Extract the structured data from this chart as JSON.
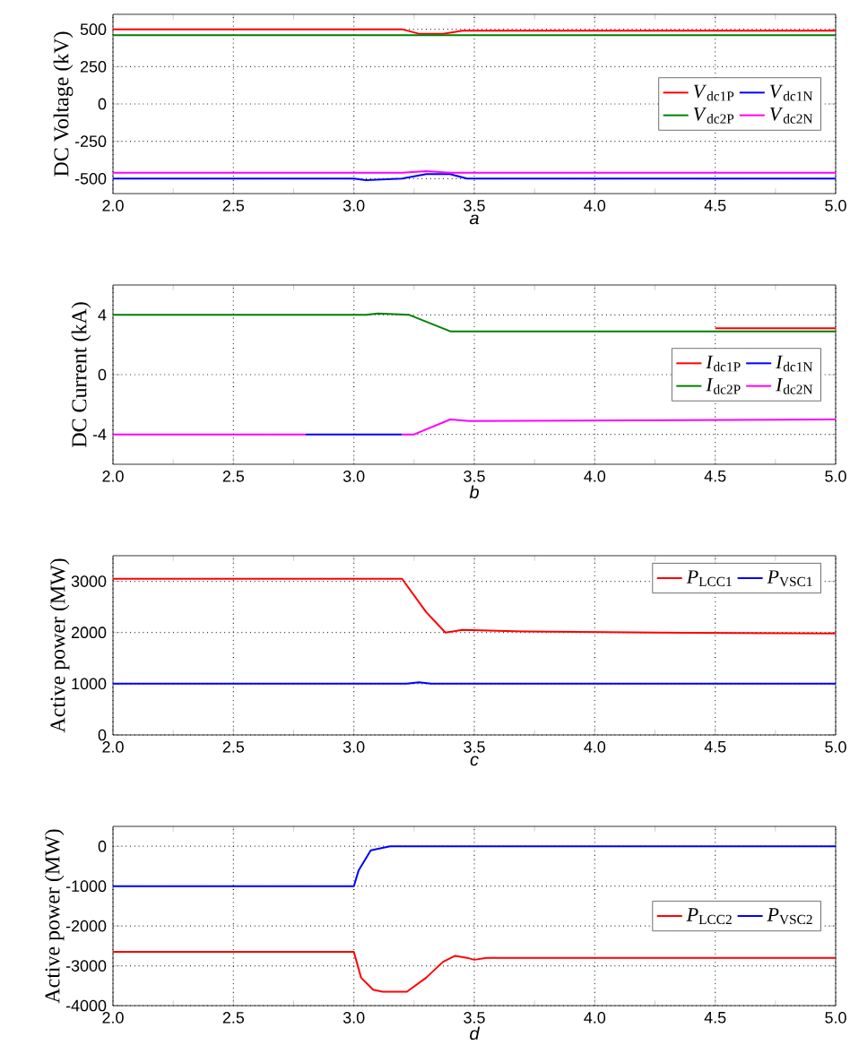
{
  "chart_data": [
    {
      "type": "line",
      "xlabel": "a",
      "ylabel": "DC Voltage (kV)",
      "xlim": [
        2,
        5
      ],
      "ylim": [
        -600,
        600
      ],
      "xticks": [
        {
          "value": 2,
          "label": "2.0"
        },
        {
          "value": 2.5,
          "label": "2.5"
        },
        {
          "value": 3,
          "label": "3.0"
        },
        {
          "value": 3.5,
          "label": "3.5"
        },
        {
          "value": 4,
          "label": "4.0"
        },
        {
          "value": 4.5,
          "label": "4.5"
        },
        {
          "value": 5,
          "label": "5.0"
        }
      ],
      "yticks": [
        -500,
        -250,
        0,
        250,
        500
      ],
      "grid": true,
      "legend": "right",
      "marker": "none",
      "line_style": "solid",
      "series": [
        {
          "name": "*V*$_{dc1P}$",
          "color": "#ff0000",
          "x": [
            2,
            3.2,
            3.27,
            3.37,
            3.45,
            3.6,
            5
          ],
          "values": [
            500,
            500,
            470,
            470,
            490,
            490,
            490
          ]
        },
        {
          "name": "*V*$_{dc1N}$",
          "color": "#0000ff",
          "x": [
            2,
            3.0,
            3.05,
            3.2,
            3.3,
            3.4,
            3.47,
            5
          ],
          "values": [
            -500,
            -500,
            -510,
            -500,
            -470,
            -470,
            -500,
            -500
          ]
        },
        {
          "name": "*V*$_{dc2P}$",
          "color": "#008000",
          "x": [
            2,
            3.2,
            3.45,
            5
          ],
          "values": [
            460,
            460,
            460,
            460
          ]
        },
        {
          "name": "*V*$_{dc2N}$",
          "color": "#ff00ff",
          "x": [
            2,
            3.2,
            3.3,
            3.4,
            5
          ],
          "values": [
            -460,
            -460,
            -450,
            -460,
            -460
          ]
        }
      ]
    },
    {
      "type": "line",
      "xlabel": "b",
      "ylabel": "DC Current (kA)",
      "xlim": [
        2,
        5
      ],
      "ylim": [
        -6,
        6
      ],
      "xticks": [
        {
          "value": 2,
          "label": "2.0"
        },
        {
          "value": 2.5,
          "label": "2.5"
        },
        {
          "value": 3,
          "label": "3.0"
        },
        {
          "value": 3.5,
          "label": "3.5"
        },
        {
          "value": 4,
          "label": "4.0"
        },
        {
          "value": 4.5,
          "label": "4.5"
        },
        {
          "value": 5,
          "label": "5.0"
        }
      ],
      "yticks": [
        -4,
        0,
        4
      ],
      "grid": true,
      "legend": "right",
      "marker": "none",
      "line_style": "solid",
      "series": [
        {
          "name": "*I*$_{dc1P}$",
          "color": "#ff0000",
          "x": [
            4.5,
            5
          ],
          "values": [
            3.1,
            3.1
          ]
        },
        {
          "name": "*I*$_{dc1N}$",
          "color": "#0000ff",
          "x": [
            2.8,
            3.2
          ],
          "values": [
            -4,
            -4
          ]
        },
        {
          "name": "*I*$_{dc2P}$",
          "color": "#008000",
          "x": [
            2,
            3.05,
            3.1,
            3.23,
            3.4,
            5
          ],
          "values": [
            4,
            4,
            4.1,
            4,
            2.9,
            2.9
          ]
        },
        {
          "name": "*I*$_{dc2N}$",
          "color": "#ff00ff",
          "x": [
            2,
            2.8,
            3.0,
            3.2,
            3.25,
            3.4,
            3.48,
            5
          ],
          "values": [
            -4,
            -4,
            null,
            -4,
            -4,
            -3,
            -3.1,
            -3
          ]
        }
      ]
    },
    {
      "type": "line",
      "xlabel": "c",
      "ylabel": "Active power (MW)",
      "xlim": [
        2,
        5
      ],
      "ylim": [
        0,
        3500
      ],
      "xticks": [
        {
          "value": 2,
          "label": "2.0"
        },
        {
          "value": 2.5,
          "label": "2.5"
        },
        {
          "value": 3,
          "label": "3.0"
        },
        {
          "value": 3.5,
          "label": "3.5"
        },
        {
          "value": 4,
          "label": "4.0"
        },
        {
          "value": 4.5,
          "label": "4.5"
        },
        {
          "value": 5,
          "label": "5.0"
        }
      ],
      "yticks": [
        0,
        1000,
        2000,
        3000
      ],
      "grid": true,
      "legend": "top right",
      "marker": "none",
      "line_style": "solid",
      "series": [
        {
          "name": "*P*$_{LCC1}$",
          "color": "#ff0000",
          "x": [
            2,
            3.2,
            3.3,
            3.38,
            3.45,
            3.7,
            4.25,
            5
          ],
          "values": [
            3050,
            3050,
            2400,
            2000,
            2050,
            2020,
            2000,
            1980
          ]
        },
        {
          "name": "*P*$_{VSC1}$",
          "color": "#0000ff",
          "x": [
            2,
            3.22,
            3.27,
            3.32,
            5
          ],
          "values": [
            1000,
            1000,
            1030,
            1000,
            1000
          ]
        }
      ]
    },
    {
      "type": "line",
      "xlabel": "d",
      "ylabel": "Active power (MW)",
      "xlim": [
        2,
        5
      ],
      "ylim": [
        -4000,
        500
      ],
      "xticks": [
        {
          "value": 2,
          "label": "2.0"
        },
        {
          "value": 2.5,
          "label": "2.5"
        },
        {
          "value": 3,
          "label": "3.0"
        },
        {
          "value": 3.5,
          "label": "3.5"
        },
        {
          "value": 4,
          "label": "4.0"
        },
        {
          "value": 4.5,
          "label": "4.5"
        },
        {
          "value": 5,
          "label": "5.0"
        }
      ],
      "yticks": [
        -4000,
        -3000,
        -2000,
        -1000,
        0
      ],
      "grid": true,
      "legend": "right",
      "marker": "none",
      "line_style": "solid",
      "series": [
        {
          "name": "*P*$_{LCC2}$",
          "color": "#ff0000",
          "x": [
            2,
            3.0,
            3.03,
            3.08,
            3.12,
            3.22,
            3.3,
            3.37,
            3.42,
            3.47,
            3.5,
            3.55,
            5
          ],
          "values": [
            -2650,
            -2650,
            -3300,
            -3600,
            -3650,
            -3650,
            -3300,
            -2900,
            -2750,
            -2800,
            -2850,
            -2800,
            -2800
          ]
        },
        {
          "name": "*P*$_{VSC2}$",
          "color": "#0000ff",
          "x": [
            2,
            3.0,
            3.02,
            3.07,
            3.15,
            5
          ],
          "values": [
            -1000,
            -1000,
            -600,
            -100,
            0,
            0
          ]
        }
      ]
    }
  ]
}
